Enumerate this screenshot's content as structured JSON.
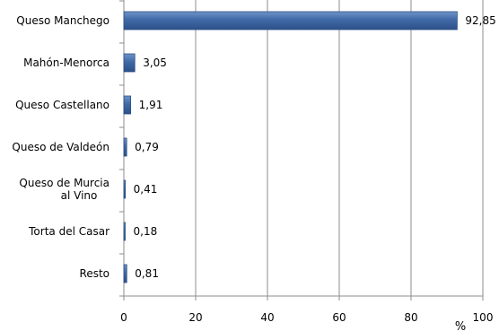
{
  "chart_data": {
    "type": "bar",
    "orientation": "horizontal",
    "categories": [
      "Queso Manchego",
      "Mahón-Menorca",
      "Queso Castellano",
      "Queso de Valdeón",
      "Queso de Murcia al Vino",
      "Torta del Casar",
      "Resto"
    ],
    "values": [
      92.85,
      3.05,
      1.91,
      0.79,
      0.41,
      0.18,
      0.81
    ],
    "value_labels": [
      "92,85",
      "3,05",
      "1,91",
      "0,79",
      "0,41",
      "0,18",
      "0,81"
    ],
    "xlim": [
      0,
      100
    ],
    "xticks": [
      "0",
      "20",
      "40",
      "60",
      "80",
      "100"
    ],
    "xlabel": "%",
    "grid": true,
    "bar_color": "#3f6aa6",
    "bar_edge_color": "#2b4f82"
  }
}
